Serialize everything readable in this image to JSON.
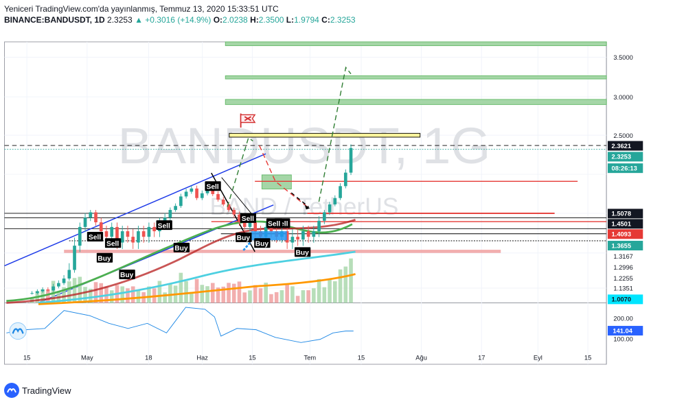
{
  "header": {
    "line1": "Yeniceri TradingView.com'da yayınlanmış, Temmuz 13, 2020 15:33:51 UTC",
    "symbol": "BINANCE:BANDUSDT, 1D",
    "price": "2.3253",
    "change": "▲ +0.3016 (+14.9%)",
    "o_label": "O:",
    "o": "2.0238",
    "h_label": "H:",
    "h": "2.3500",
    "l_label": "L:",
    "l": "1.9794",
    "c_label": "C:",
    "c": "2.3253"
  },
  "watermark": {
    "main": "BANDUSDT, 1G",
    "sub": "BAND / TetherUS"
  },
  "chart_data": {
    "type": "candlestick",
    "symbol": "BANDUSDT",
    "timeframe": "1D",
    "x_ticks": [
      "15",
      "May",
      "18",
      "Haz",
      "15",
      "Tem",
      "15",
      "Ağu",
      "17",
      "Eyl",
      "15"
    ],
    "y_ticks": [
      3.5,
      3.0,
      2.5,
      1.3167,
      1.2996,
      1.2255,
      1.1351
    ],
    "price_labels": [
      {
        "value": "2.3621",
        "style": "dark"
      },
      {
        "value": "2.3253",
        "style": "green"
      },
      {
        "value": "08:26:13",
        "style": "green"
      },
      {
        "value": "1.5078",
        "style": "dark"
      },
      {
        "value": "1.4501",
        "style": "dark"
      },
      {
        "value": "1.4093",
        "style": "red"
      },
      {
        "value": "1.3655",
        "style": "green"
      },
      {
        "value": "1.0070",
        "style": "cyan"
      }
    ],
    "indicator": {
      "value": "141.04",
      "ticks": [
        "200.00",
        "100.00"
      ]
    },
    "trade_labels": [
      {
        "text": "Sell"
      },
      {
        "text": "Sell"
      },
      {
        "text": "Buy"
      },
      {
        "text": "Buy"
      },
      {
        "text": "Sell"
      },
      {
        "text": "Buy"
      },
      {
        "text": "Sell"
      },
      {
        "text": "Sell"
      },
      {
        "text": "Buy"
      },
      {
        "text": "Sell"
      },
      {
        "text": "Buy"
      },
      {
        "text": "Sell"
      },
      {
        "text": "Buy"
      }
    ],
    "approx_closes": [
      1.08,
      1.1,
      1.12,
      1.11,
      1.15,
      1.18,
      1.22,
      1.28,
      1.35,
      1.42,
      1.48,
      1.52,
      1.45,
      1.4,
      1.38,
      1.42,
      1.36,
      1.4,
      1.38,
      1.36,
      1.4,
      1.38,
      1.42,
      1.4,
      1.45,
      1.48,
      1.55,
      1.6,
      1.72,
      1.78,
      1.82,
      1.7,
      1.76,
      1.8,
      1.75,
      1.68,
      1.62,
      1.55,
      1.5,
      1.45,
      1.42,
      1.45,
      1.4,
      1.38,
      1.42,
      1.4,
      1.38,
      1.4,
      1.36,
      1.38,
      1.37,
      1.4,
      1.38,
      1.4,
      1.46,
      1.52,
      1.62,
      1.7,
      1.85,
      2.02,
      2.33
    ]
  },
  "footer": {
    "brand": "TradingView"
  },
  "colors": {
    "up": "#26a69a",
    "down": "#ef5350",
    "accent": "#2962ff"
  }
}
